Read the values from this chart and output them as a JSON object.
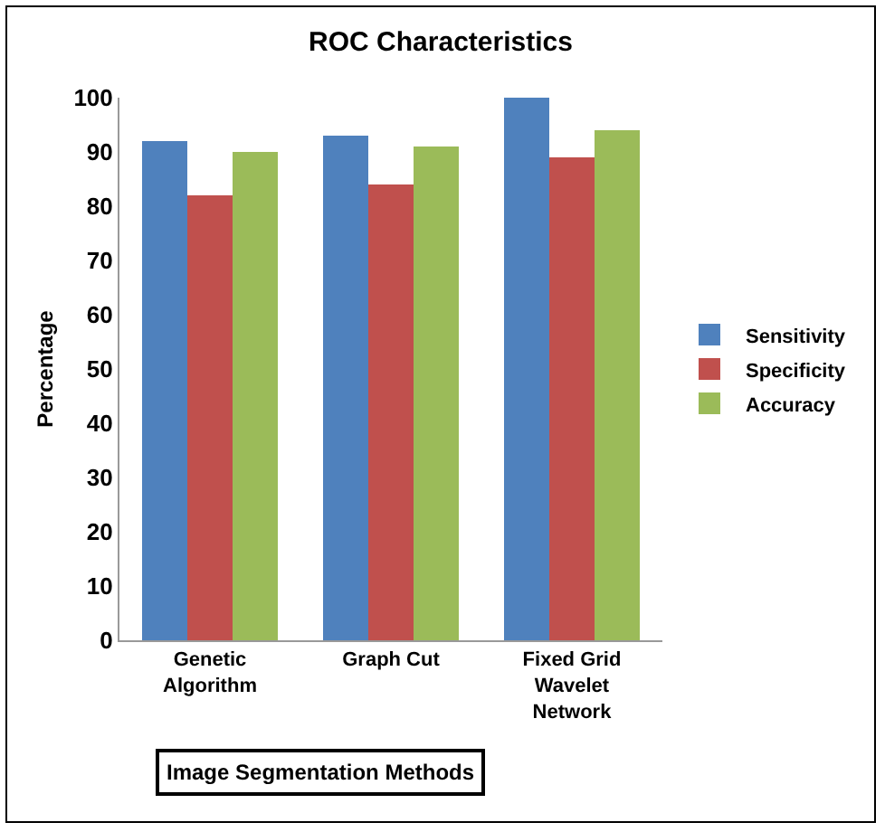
{
  "chart_data": {
    "type": "bar",
    "title": "ROC Characteristics",
    "xlabel": "Image Segmentation Methods",
    "ylabel": "Percentage",
    "categories": [
      "Genetic Algorithm",
      "Graph Cut",
      "Fixed Grid Wavelet Network"
    ],
    "series": [
      {
        "name": "Sensitivity",
        "color": "#4f81bd",
        "values": [
          92,
          93,
          100
        ]
      },
      {
        "name": "Specificity",
        "color": "#c0504d",
        "values": [
          82,
          84,
          89
        ]
      },
      {
        "name": "Accuracy",
        "color": "#9bbb59",
        "values": [
          90,
          91,
          94
        ]
      }
    ],
    "ylim": [
      0,
      100
    ],
    "yticks": [
      0,
      10,
      20,
      30,
      40,
      50,
      60,
      70,
      80,
      90,
      100
    ],
    "grid": false,
    "legend": "right"
  }
}
